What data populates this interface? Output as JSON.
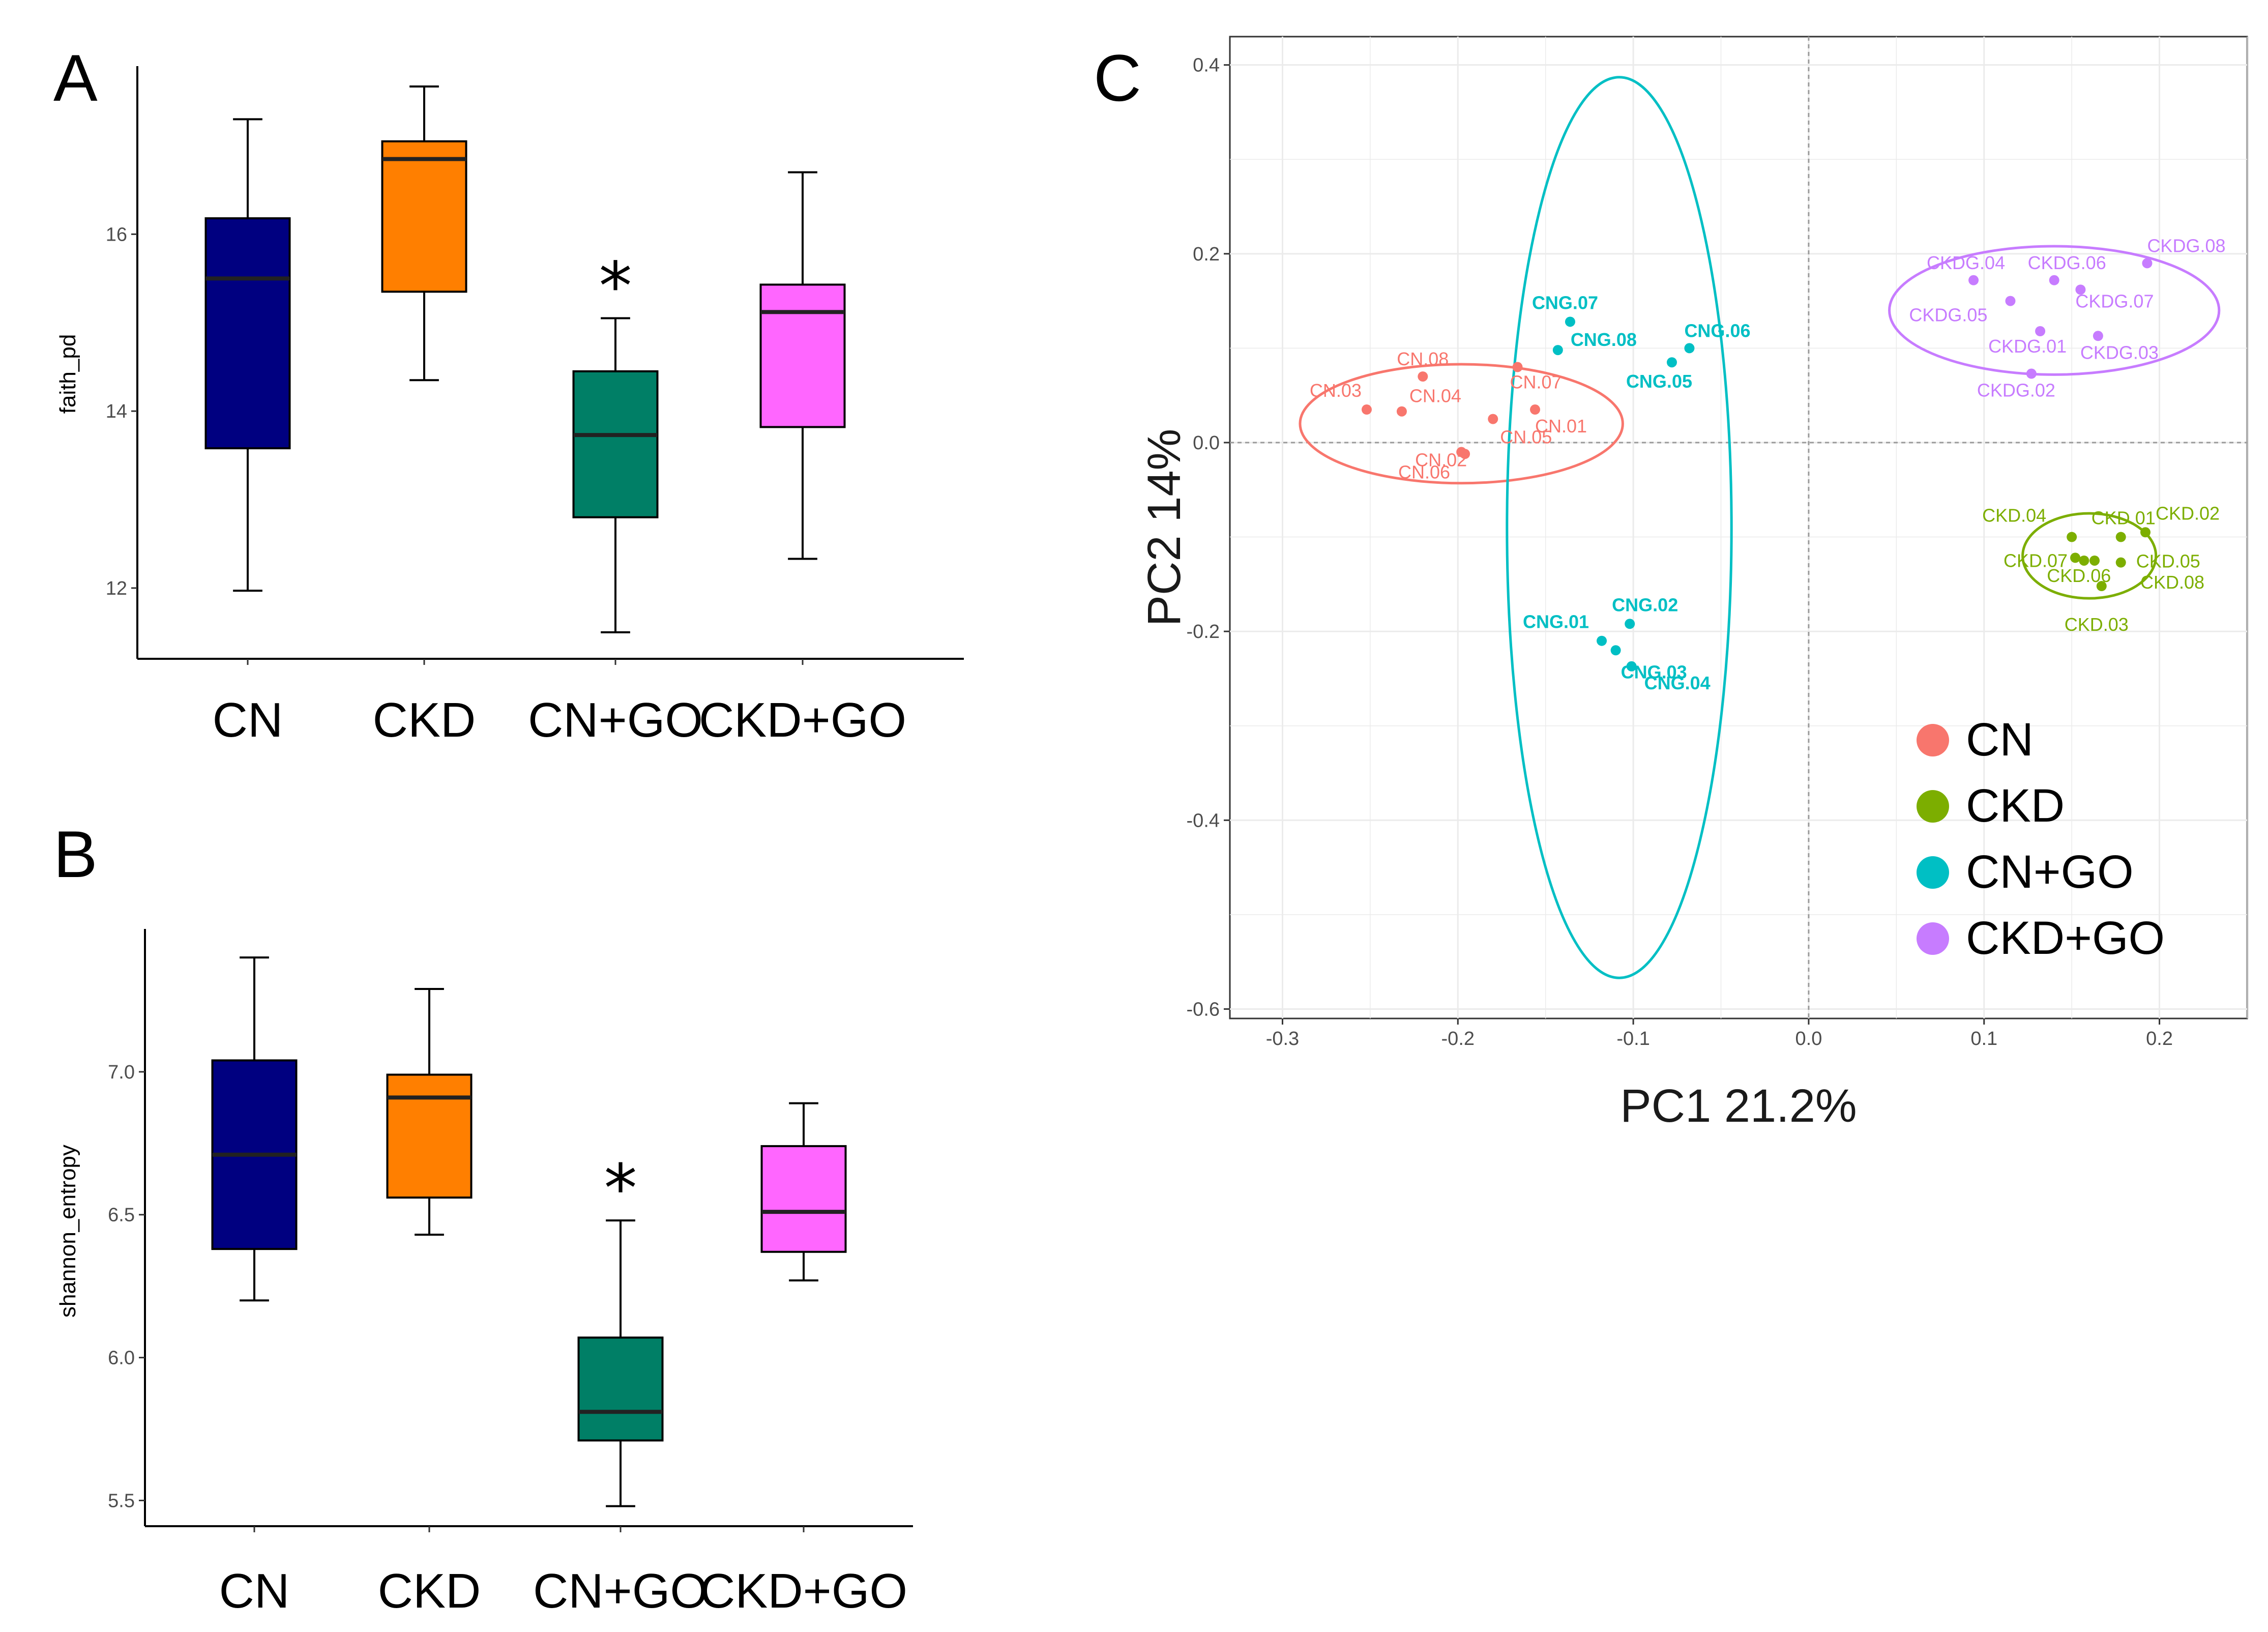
{
  "panels": {
    "A": "A",
    "B": "B",
    "C": "C"
  },
  "colors": {
    "CN": "#000080",
    "CKD": "#FF7F00",
    "CN+GO": "#007F66",
    "CKD+GO": "#FF66FF",
    "pca_CN": "#F8766D",
    "pca_CKD": "#7CAE00",
    "pca_CN+GO": "#00BFC4",
    "pca_CKD+GO": "#C77CFF"
  },
  "chart_data": [
    {
      "type": "box",
      "panel": "A",
      "categories": [
        "CN",
        "CKD",
        "CN+GO",
        "CKD+GO"
      ],
      "ylabel": "faith_pd",
      "xlabel": "",
      "ylim": [
        11.2,
        17.9
      ],
      "yticks": [
        "12",
        "14",
        "16"
      ],
      "boxes": [
        {
          "min": 11.97,
          "q1": 13.58,
          "median": 15.5,
          "q3": 16.18,
          "max": 17.3
        },
        {
          "min": 14.35,
          "q1": 15.35,
          "median": 16.85,
          "q3": 17.05,
          "max": 17.67
        },
        {
          "min": 11.5,
          "q1": 12.8,
          "median": 13.73,
          "q3": 14.45,
          "max": 15.05
        },
        {
          "min": 12.33,
          "q1": 13.82,
          "median": 15.12,
          "q3": 15.43,
          "max": 16.7
        }
      ],
      "annotations": [
        {
          "category": "CN+GO",
          "text": "*"
        }
      ]
    },
    {
      "type": "box",
      "panel": "B",
      "categories": [
        "CN",
        "CKD",
        "CN+GO",
        "CKD+GO"
      ],
      "ylabel": "shannon_entropy",
      "xlabel": "",
      "ylim": [
        5.41,
        7.5
      ],
      "yticks": [
        "5.5",
        "6.0",
        "6.5",
        "7.0"
      ],
      "boxes": [
        {
          "min": 6.2,
          "q1": 6.38,
          "median": 6.71,
          "q3": 7.04,
          "max": 7.4
        },
        {
          "min": 6.43,
          "q1": 6.56,
          "median": 6.91,
          "q3": 6.99,
          "max": 7.29
        },
        {
          "min": 5.48,
          "q1": 5.71,
          "median": 5.81,
          "q3": 6.07,
          "max": 6.48
        },
        {
          "min": 6.27,
          "q1": 6.37,
          "median": 6.51,
          "q3": 6.74,
          "max": 6.89
        }
      ],
      "annotations": [
        {
          "category": "CN+GO",
          "text": "*"
        }
      ]
    },
    {
      "type": "scatter",
      "panel": "C",
      "xlabel": "PC1 21.2%",
      "ylabel": "PC2 14%",
      "xlim": [
        -0.33,
        0.25
      ],
      "ylim": [
        -0.61,
        0.43
      ],
      "xticks": [
        "-0.3",
        "-0.2",
        "-0.1",
        "0.0",
        "0.1",
        "0.2"
      ],
      "yticks": [
        "0.4",
        "0.2",
        "0.0",
        "-0.2",
        "-0.4",
        "-0.6"
      ],
      "legend_position": "bottom-right",
      "legend": [
        "CN",
        "CKD",
        "CN+GO",
        "CKD+GO"
      ],
      "groups": [
        {
          "name": "CN",
          "ellipse": {
            "cx": -0.198,
            "cy": 0.02,
            "rx": 0.092,
            "ry": 0.063
          },
          "points": [
            {
              "label": "CN.08",
              "x": -0.22,
              "y": 0.07
            },
            {
              "label": "CN.03",
              "x": -0.252,
              "y": 0.035
            },
            {
              "label": "CN.04",
              "x": -0.232,
              "y": 0.033
            },
            {
              "label": "CN.02",
              "x": -0.198,
              "y": -0.01
            },
            {
              "label": "CN.06",
              "x": -0.196,
              "y": -0.012
            },
            {
              "label": "CN.05",
              "x": -0.18,
              "y": 0.025
            },
            {
              "label": "CN.07",
              "x": -0.166,
              "y": 0.08
            },
            {
              "label": "CN.01",
              "x": -0.156,
              "y": 0.035
            }
          ]
        },
        {
          "name": "CKD",
          "ellipse": {
            "cx": 0.16,
            "cy": -0.12,
            "rx": 0.038,
            "ry": 0.045
          },
          "points": [
            {
              "label": "CKD.04",
              "x": 0.15,
              "y": -0.1
            },
            {
              "label": "CKD.01",
              "x": 0.178,
              "y": -0.1
            },
            {
              "label": "CKD.02",
              "x": 0.192,
              "y": -0.095
            },
            {
              "label": "CKD.07",
              "x": 0.152,
              "y": -0.122
            },
            {
              "label": "CKD.05",
              "x": 0.178,
              "y": -0.127
            },
            {
              "label": "CKD.06",
              "x": 0.157,
              "y": -0.125
            },
            {
              "label": "CKD.08",
              "x": 0.163,
              "y": -0.125
            },
            {
              "label": "CKD.03",
              "x": 0.167,
              "y": -0.152
            }
          ]
        },
        {
          "name": "CN+GO",
          "ellipse": {
            "cx": -0.108,
            "cy": -0.09,
            "rx": 0.064,
            "ry": 0.477
          },
          "points": [
            {
              "label": "CNG.07",
              "x": -0.136,
              "y": 0.128
            },
            {
              "label": "CNG.08",
              "x": -0.143,
              "y": 0.098
            },
            {
              "label": "CNG.06",
              "x": -0.068,
              "y": 0.1
            },
            {
              "label": "CNG.05",
              "x": -0.078,
              "y": 0.085
            },
            {
              "label": "CNG.02",
              "x": -0.102,
              "y": -0.192
            },
            {
              "label": "CNG.01",
              "x": -0.118,
              "y": -0.21
            },
            {
              "label": "CNG.03",
              "x": -0.11,
              "y": -0.22
            },
            {
              "label": "CNG.04",
              "x": -0.101,
              "y": -0.237
            }
          ]
        },
        {
          "name": "CKD+GO",
          "ellipse": {
            "cx": 0.14,
            "cy": 0.14,
            "rx": 0.094,
            "ry": 0.068
          },
          "points": [
            {
              "label": "CKDG.08",
              "x": 0.193,
              "y": 0.19
            },
            {
              "label": "CKDG.04",
              "x": 0.094,
              "y": 0.172
            },
            {
              "label": "CKDG.06",
              "x": 0.14,
              "y": 0.172
            },
            {
              "label": "CKDG.07",
              "x": 0.155,
              "y": 0.162
            },
            {
              "label": "CKDG.05",
              "x": 0.115,
              "y": 0.15
            },
            {
              "label": "CKDG.01",
              "x": 0.132,
              "y": 0.118
            },
            {
              "label": "CKDG.03",
              "x": 0.165,
              "y": 0.113
            },
            {
              "label": "CKDG.02",
              "x": 0.127,
              "y": 0.073
            }
          ]
        }
      ]
    }
  ]
}
